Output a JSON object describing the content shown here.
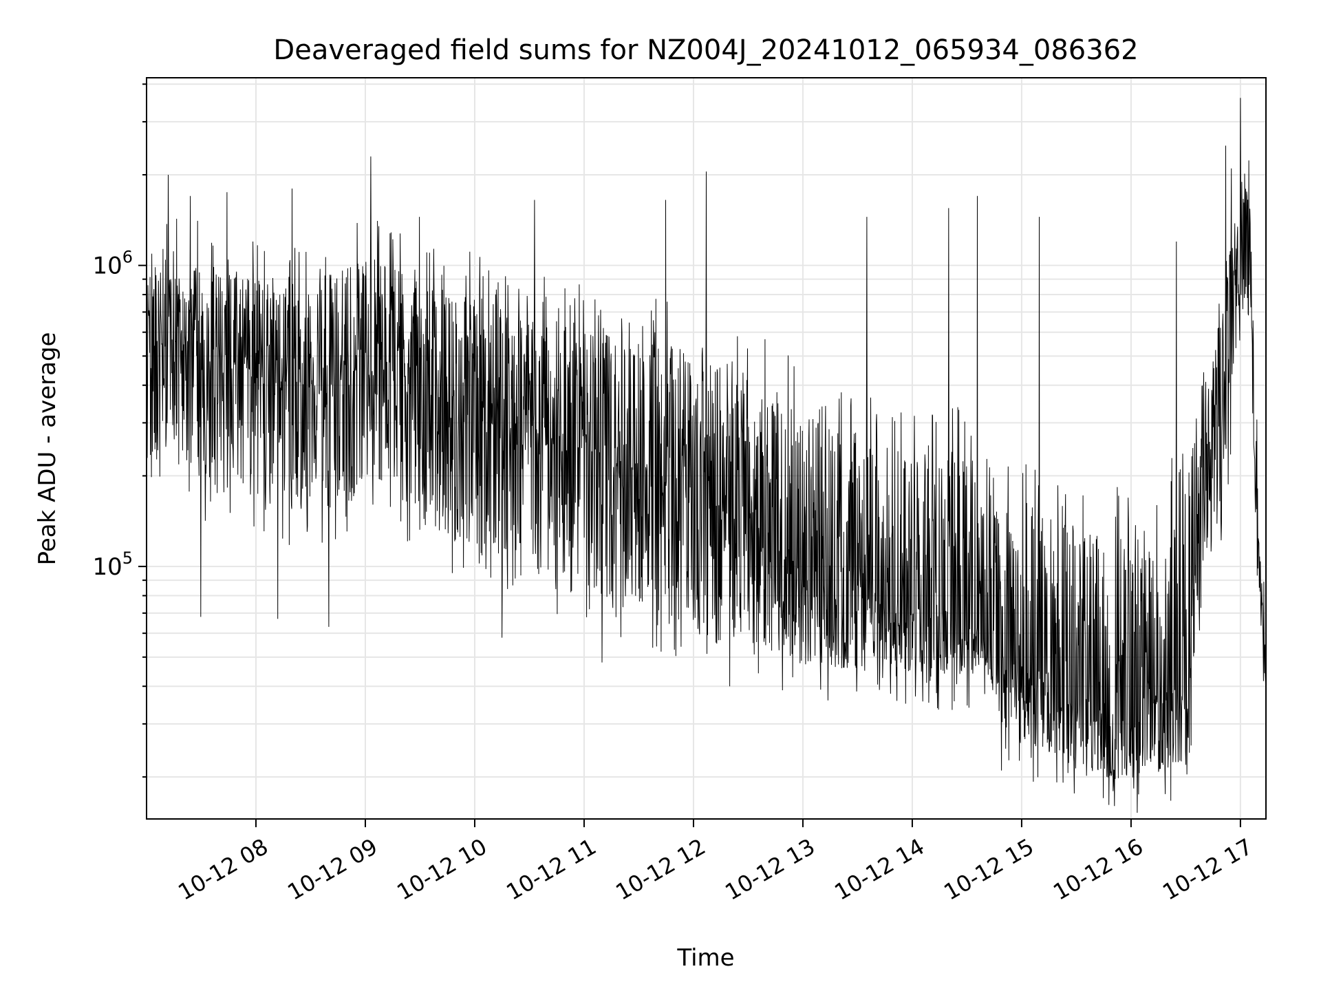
{
  "chart_data": {
    "type": "line",
    "title": "Deaveraged field sums for NZ004J_20241012_065934_086362",
    "xlabel": "Time",
    "ylabel": "Peak ADU - average",
    "yscale": "log",
    "grid": true,
    "colors": {
      "line": "#000000",
      "grid": "#e6e6e6",
      "axes": "#000000"
    },
    "xlim": [
      "2024-10-12T07:00",
      "2024-10-12T17:14"
    ],
    "ylim": [
      14500,
      4200000
    ],
    "xticks": [
      {
        "x": "2024-10-12T08:00",
        "label": "10-12 08"
      },
      {
        "x": "2024-10-12T09:00",
        "label": "10-12 09"
      },
      {
        "x": "2024-10-12T10:00",
        "label": "10-12 10"
      },
      {
        "x": "2024-10-12T11:00",
        "label": "10-12 11"
      },
      {
        "x": "2024-10-12T12:00",
        "label": "10-12 12"
      },
      {
        "x": "2024-10-12T13:00",
        "label": "10-12 13"
      },
      {
        "x": "2024-10-12T14:00",
        "label": "10-12 14"
      },
      {
        "x": "2024-10-12T15:00",
        "label": "10-12 15"
      },
      {
        "x": "2024-10-12T16:00",
        "label": "10-12 16"
      },
      {
        "x": "2024-10-12T17:00",
        "label": "10-12 17"
      }
    ],
    "yticks": [
      {
        "value": 100000,
        "base": "10",
        "exp": "5"
      },
      {
        "value": 1000000,
        "base": "10",
        "exp": "6"
      }
    ],
    "series": [
      {
        "x": [
          "2024-10-12T07:00",
          "2024-10-12T07:10",
          "2024-10-12T07:20",
          "2024-10-12T07:30",
          "2024-10-12T07:40",
          "2024-10-12T07:50",
          "2024-10-12T08:00",
          "2024-10-12T08:10",
          "2024-10-12T08:20",
          "2024-10-12T08:30",
          "2024-10-12T08:40",
          "2024-10-12T08:50",
          "2024-10-12T09:00",
          "2024-10-12T09:10",
          "2024-10-12T09:20",
          "2024-10-12T09:30",
          "2024-10-12T09:40",
          "2024-10-12T09:50",
          "2024-10-12T10:00",
          "2024-10-12T10:10",
          "2024-10-12T10:20",
          "2024-10-12T10:30",
          "2024-10-12T10:40",
          "2024-10-12T10:50",
          "2024-10-12T11:00",
          "2024-10-12T11:10",
          "2024-10-12T11:20",
          "2024-10-12T11:30",
          "2024-10-12T11:40",
          "2024-10-12T11:50",
          "2024-10-12T12:00",
          "2024-10-12T12:10",
          "2024-10-12T12:20",
          "2024-10-12T12:30",
          "2024-10-12T12:40",
          "2024-10-12T12:50",
          "2024-10-12T13:00",
          "2024-10-12T13:10",
          "2024-10-12T13:20",
          "2024-10-12T13:30",
          "2024-10-12T13:40",
          "2024-10-12T13:50",
          "2024-10-12T14:00",
          "2024-10-12T14:10",
          "2024-10-12T14:20",
          "2024-10-12T14:30",
          "2024-10-12T14:40",
          "2024-10-12T14:50",
          "2024-10-12T15:00",
          "2024-10-12T15:10",
          "2024-10-12T15:20",
          "2024-10-12T15:30",
          "2024-10-12T15:40",
          "2024-10-12T15:50",
          "2024-10-12T16:00",
          "2024-10-12T16:10",
          "2024-10-12T16:20",
          "2024-10-12T16:30",
          "2024-10-12T16:40",
          "2024-10-12T16:50",
          "2024-10-12T17:00",
          "2024-10-12T17:05",
          "2024-10-12T17:10",
          "2024-10-12T17:14"
        ],
        "y": [
          500000,
          600000,
          550000,
          500000,
          450000,
          480000,
          450000,
          420000,
          430000,
          450000,
          440000,
          460000,
          470000,
          480000,
          420000,
          380000,
          350000,
          340000,
          330000,
          310000,
          300000,
          290000,
          280000,
          270000,
          260000,
          240000,
          220000,
          200000,
          190000,
          180000,
          170000,
          160000,
          150000,
          140000,
          120000,
          105000,
          90000,
          80000,
          76000,
          74000,
          72000,
          71000,
          70000,
          69000,
          68000,
          67000,
          66000,
          50000,
          45000,
          42000,
          38000,
          34000,
          32000,
          30000,
          32000,
          36000,
          38000,
          40000,
          180000,
          300000,
          1500000,
          1100000,
          110000,
          42000
        ],
        "low": [
          200000,
          250000,
          220000,
          190000,
          170000,
          180000,
          160000,
          160000,
          150000,
          170000,
          150000,
          160000,
          180000,
          190000,
          160000,
          140000,
          130000,
          120000,
          110000,
          110000,
          100000,
          95000,
          92000,
          90000,
          85000,
          80000,
          76000,
          72000,
          68000,
          66000,
          62000,
          60000,
          57000,
          55000,
          52000,
          50000,
          47000,
          46000,
          46000,
          45000,
          44000,
          44000,
          44000,
          43000,
          43000,
          43000,
          43000,
          28000,
          26000,
          25000,
          23000,
          21000,
          20000,
          19000,
          19000,
          20000,
          21000,
          22000,
          90000,
          140000,
          700000,
          600000,
          80000,
          38000
        ],
        "high": [
          950000,
          1100000,
          1050000,
          1000000,
          950000,
          1000000,
          900000,
          850000,
          880000,
          950000,
          900000,
          1000000,
          1050000,
          1100000,
          950000,
          900000,
          850000,
          800000,
          800000,
          760000,
          720000,
          700000,
          680000,
          650000,
          640000,
          620000,
          600000,
          580000,
          560000,
          540000,
          520000,
          500000,
          480000,
          450000,
          420000,
          380000,
          320000,
          300000,
          280000,
          260000,
          260000,
          250000,
          250000,
          250000,
          245000,
          240000,
          240000,
          180000,
          170000,
          160000,
          150000,
          140000,
          130000,
          130000,
          140000,
          150000,
          160000,
          170000,
          450000,
          700000,
          2000000,
          1800000,
          140000,
          48000
        ],
        "spikes": [
          {
            "x": "2024-10-12T07:12",
            "y": 2000000
          },
          {
            "x": "2024-10-12T07:24",
            "y": 1700000
          },
          {
            "x": "2024-10-12T07:30",
            "y": 68000
          },
          {
            "x": "2024-10-12T07:44",
            "y": 1750000
          },
          {
            "x": "2024-10-12T08:12",
            "y": 67000
          },
          {
            "x": "2024-10-12T08:20",
            "y": 1800000
          },
          {
            "x": "2024-10-12T08:40",
            "y": 63000
          },
          {
            "x": "2024-10-12T09:03",
            "y": 2300000
          },
          {
            "x": "2024-10-12T09:30",
            "y": 1450000
          },
          {
            "x": "2024-10-12T10:33",
            "y": 1650000
          },
          {
            "x": "2024-10-12T10:15",
            "y": 58000
          },
          {
            "x": "2024-10-12T11:10",
            "y": 48000
          },
          {
            "x": "2024-10-12T11:45",
            "y": 1650000
          },
          {
            "x": "2024-10-12T12:07",
            "y": 2050000
          },
          {
            "x": "2024-10-12T12:20",
            "y": 40000
          },
          {
            "x": "2024-10-12T13:35",
            "y": 1450000
          },
          {
            "x": "2024-10-12T14:02",
            "y": 37000
          },
          {
            "x": "2024-10-12T14:20",
            "y": 1550000
          },
          {
            "x": "2024-10-12T14:36",
            "y": 1700000
          },
          {
            "x": "2024-10-12T14:49",
            "y": 21000
          },
          {
            "x": "2024-10-12T15:10",
            "y": 1450000
          },
          {
            "x": "2024-10-12T15:45",
            "y": 17000
          },
          {
            "x": "2024-10-12T15:51",
            "y": 16000
          },
          {
            "x": "2024-10-12T16:04",
            "y": 17500
          },
          {
            "x": "2024-10-12T16:25",
            "y": 1200000
          },
          {
            "x": "2024-10-12T16:52",
            "y": 2500000
          },
          {
            "x": "2024-10-12T16:55",
            "y": 2100000
          },
          {
            "x": "2024-10-12T17:00",
            "y": 3600000
          }
        ]
      }
    ]
  }
}
